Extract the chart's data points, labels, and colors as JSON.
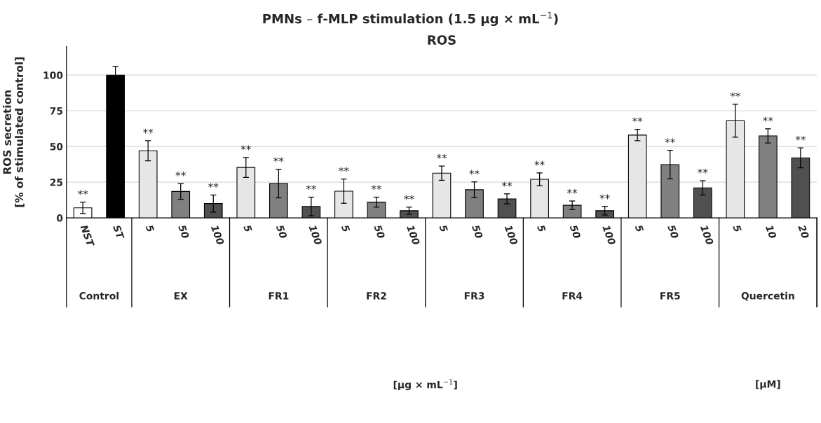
{
  "chart_data": {
    "type": "bar",
    "title": "PMNs – f-MLP stimulation (1.5 µg × mL$^{−1}$)",
    "subtitle": "ROS",
    "ylabel": "ROS secretion\n[% of stimulated control]",
    "categories": [
      "NST",
      "ST",
      "5",
      "50",
      "100",
      "5",
      "50",
      "100",
      "5",
      "50",
      "100",
      "5",
      "50",
      "100",
      "5",
      "50",
      "100",
      "5",
      "50",
      "100",
      "5",
      "10",
      "20"
    ],
    "values": [
      7,
      100,
      47,
      18.5,
      10,
      35.3,
      24,
      8,
      18.7,
      11,
      5,
      31.3,
      19.7,
      13.3,
      27,
      8.8,
      5,
      58,
      37.3,
      21,
      68,
      57.4,
      42
    ],
    "errors": [
      4,
      6,
      7,
      5.5,
      6,
      7,
      10,
      6.5,
      8.5,
      3.5,
      2.5,
      5,
      5.5,
      3.5,
      4.5,
      3,
      3,
      4,
      10,
      5,
      11.5,
      5,
      7
    ],
    "value_labels": [
      "**",
      null,
      "**",
      "**",
      "**",
      "**",
      "**",
      "**",
      "**",
      "**",
      "**",
      "**",
      "**",
      "**",
      "**",
      "**",
      "**",
      "**",
      "**",
      "**",
      "**",
      "**",
      "**"
    ],
    "colors": [
      "#ffffff",
      "#000000",
      "#e6e6e6",
      "#808080",
      "#505050",
      "#e6e6e6",
      "#808080",
      "#505050",
      "#e6e6e6",
      "#808080",
      "#505050",
      "#e6e6e6",
      "#808080",
      "#505050",
      "#e6e6e6",
      "#808080",
      "#505050",
      "#e6e6e6",
      "#808080",
      "#505050",
      "#e6e6e6",
      "#808080",
      "#505050"
    ],
    "ylim": [
      0,
      120
    ],
    "yticks": [
      0,
      25,
      50,
      75,
      100
    ],
    "grid": "y",
    "annotations": [
      "Control",
      "EX",
      "FR1",
      "FR2",
      "FR3",
      "FR4",
      "FR5",
      "Quercetin",
      "[µg × mL$^{−1}$]",
      "[µM]"
    ]
  }
}
